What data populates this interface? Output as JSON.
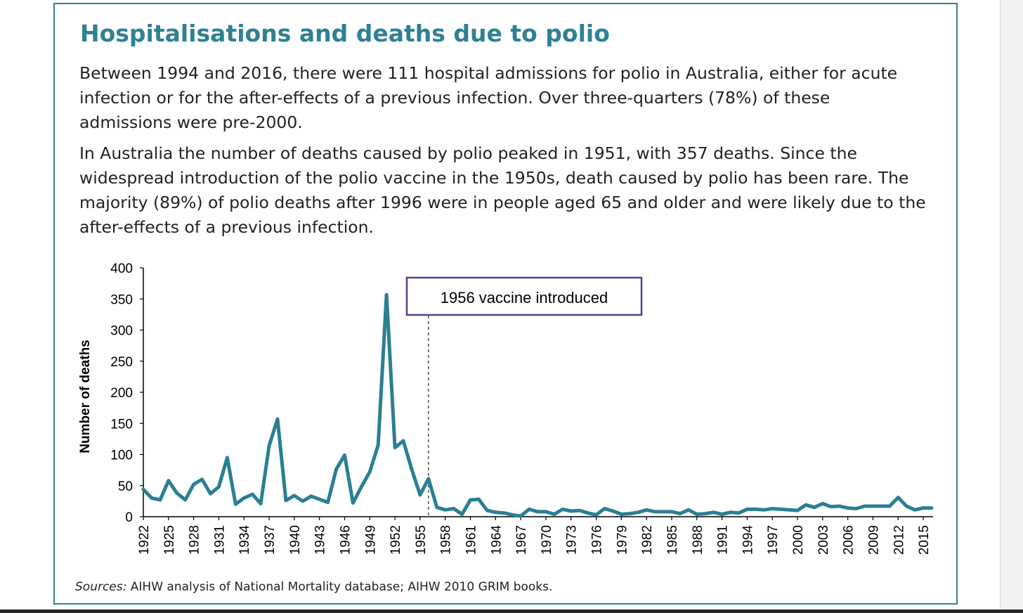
{
  "card": {
    "title": "Hospitalisations and deaths due to polio",
    "paragraph1": "Between 1994 and 2016, there were 111 hospital admissions for polio in Australia, either for acute infection or for the after-effects of a previous infection. Over three-quarters (78%) of these admissions were pre-2000.",
    "paragraph2": "In Australia the number of deaths caused by polio peaked in 1951, with 357 deaths. Since the widespread introduction of the polio vaccine in the 1950s, death caused by polio has been rare. The majority (89%) of polio deaths after 1996 were in people aged 65 and older and were likely due to the after-effects of a previous infection.",
    "sources_label": "Sources:",
    "sources_text": "AIHW analysis of National Mortality database; AIHW 2010 GRIM books."
  },
  "colors": {
    "accent": "#2f8194",
    "line": "#2b7f92",
    "annotation_border": "#5b3b8c"
  },
  "chart_data": {
    "type": "line",
    "ylabel": "Number of deaths",
    "xlabel": "",
    "ylim": [
      0,
      400
    ],
    "yticks": [
      0,
      50,
      100,
      150,
      200,
      250,
      300,
      350,
      400
    ],
    "xlim": [
      1922,
      2016
    ],
    "xticks": [
      1922,
      1925,
      1928,
      1931,
      1934,
      1937,
      1940,
      1943,
      1946,
      1949,
      1952,
      1955,
      1958,
      1961,
      1964,
      1967,
      1970,
      1973,
      1976,
      1979,
      1982,
      1985,
      1988,
      1991,
      1994,
      1997,
      2000,
      2003,
      2006,
      2009,
      2012,
      2015
    ],
    "grid": false,
    "annotation": {
      "text": "1956 vaccine introduced",
      "x": 1956
    },
    "series": [
      {
        "x": [
          1922,
          1923,
          1924,
          1925,
          1926,
          1927,
          1928,
          1929,
          1930,
          1931,
          1932,
          1933,
          1934,
          1935,
          1936,
          1937,
          1938,
          1939,
          1940,
          1941,
          1942,
          1943,
          1944,
          1945,
          1946,
          1947,
          1948,
          1949,
          1950,
          1951,
          1952,
          1953,
          1954,
          1955,
          1956,
          1957,
          1958,
          1959,
          1960,
          1961,
          1962,
          1963,
          1964,
          1965,
          1966,
          1967,
          1968,
          1969,
          1970,
          1971,
          1972,
          1973,
          1974,
          1975,
          1976,
          1977,
          1978,
          1979,
          1980,
          1981,
          1982,
          1983,
          1984,
          1985,
          1986,
          1987,
          1988,
          1989,
          1990,
          1991,
          1992,
          1993,
          1994,
          1995,
          1996,
          1997,
          1998,
          1999,
          2000,
          2001,
          2002,
          2003,
          2004,
          2005,
          2006,
          2007,
          2008,
          2009,
          2010,
          2011,
          2012,
          2013,
          2014,
          2015,
          2016
        ],
        "values": [
          44,
          30,
          27,
          58,
          38,
          27,
          52,
          60,
          37,
          48,
          95,
          20,
          30,
          36,
          21,
          114,
          157,
          26,
          34,
          25,
          33,
          28,
          23,
          76,
          99,
          22,
          48,
          72,
          115,
          357,
          111,
          122,
          76,
          35,
          61,
          15,
          11,
          13,
          4,
          27,
          28,
          10,
          7,
          6,
          3,
          1,
          12,
          8,
          8,
          4,
          12,
          9,
          10,
          6,
          3,
          13,
          9,
          4,
          5,
          7,
          11,
          8,
          8,
          8,
          5,
          11,
          4,
          5,
          7,
          4,
          7,
          6,
          12,
          12,
          11,
          13,
          12,
          11,
          10,
          19,
          15,
          21,
          16,
          17,
          14,
          13,
          17,
          17,
          17,
          17,
          31,
          17,
          11,
          14,
          14
        ]
      }
    ]
  }
}
